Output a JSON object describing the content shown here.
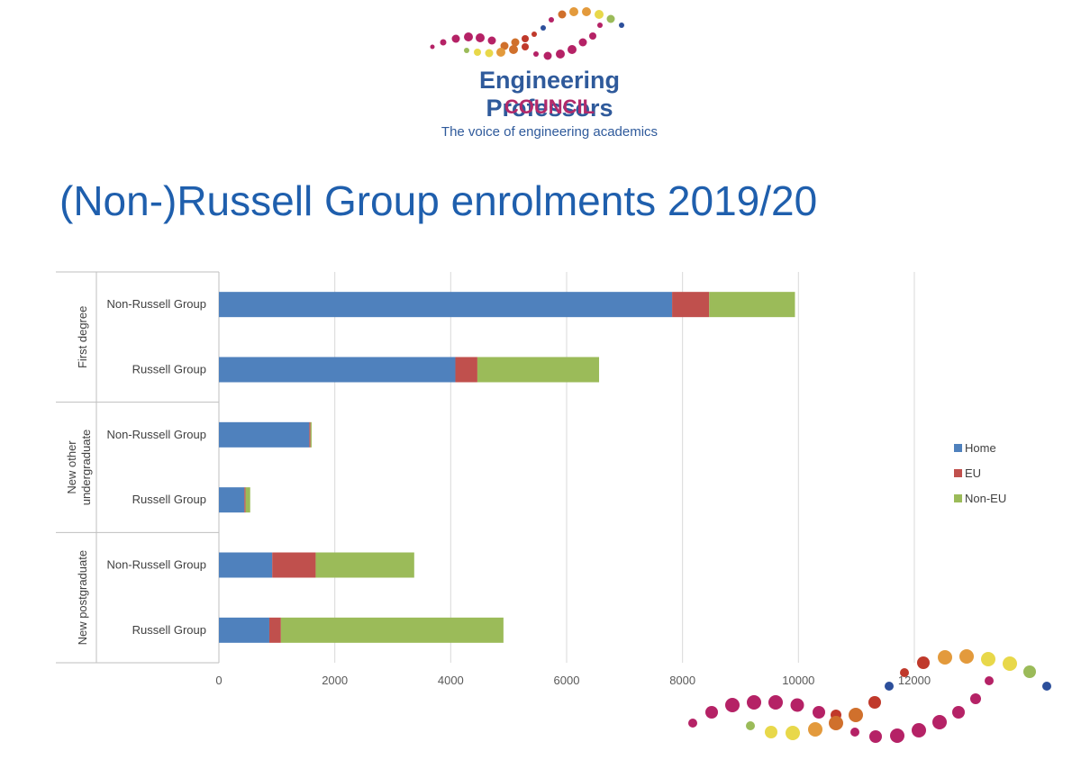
{
  "logo": {
    "line1": "Engineering Professors",
    "line2": "COUNCIL",
    "tagline": "The voice of engineering academics"
  },
  "page_title": "(Non-)Russell Group enrolments 2019/20",
  "colors": {
    "home": "#4f81bd",
    "eu": "#c0504d",
    "noneu": "#9bbb59",
    "title": "#1f5fad"
  },
  "chart_data": {
    "type": "bar",
    "orientation": "horizontal",
    "stacked": true,
    "title": "",
    "xlabel": "",
    "ylabel": "",
    "xlim": [
      0,
      12000
    ],
    "x_ticks": [
      0,
      2000,
      4000,
      6000,
      8000,
      10000,
      12000
    ],
    "grid": true,
    "legend_position": "right",
    "groups": [
      {
        "name": "First degree",
        "categories": [
          "Non-Russell Group",
          "Russell Group"
        ]
      },
      {
        "name": "New other undergraduate",
        "name_lines": [
          "New other",
          "undergraduate"
        ],
        "categories": [
          "Non-Russell Group",
          "Russell Group"
        ]
      },
      {
        "name": "New postgraduate",
        "categories": [
          "Non-Russell Group",
          "Russell Group"
        ]
      }
    ],
    "categories": [
      "Non-Russell Group",
      "Russell Group",
      "Non-Russell Group",
      "Russell Group",
      "Non-Russell Group",
      "Russell Group"
    ],
    "series": [
      {
        "name": "Home",
        "values": [
          7820,
          4080,
          1560,
          440,
          920,
          870
        ]
      },
      {
        "name": "EU",
        "values": [
          640,
          380,
          20,
          20,
          750,
          200
        ]
      },
      {
        "name": "Non-EU",
        "values": [
          1480,
          2100,
          20,
          80,
          1700,
          3840
        ]
      }
    ]
  }
}
